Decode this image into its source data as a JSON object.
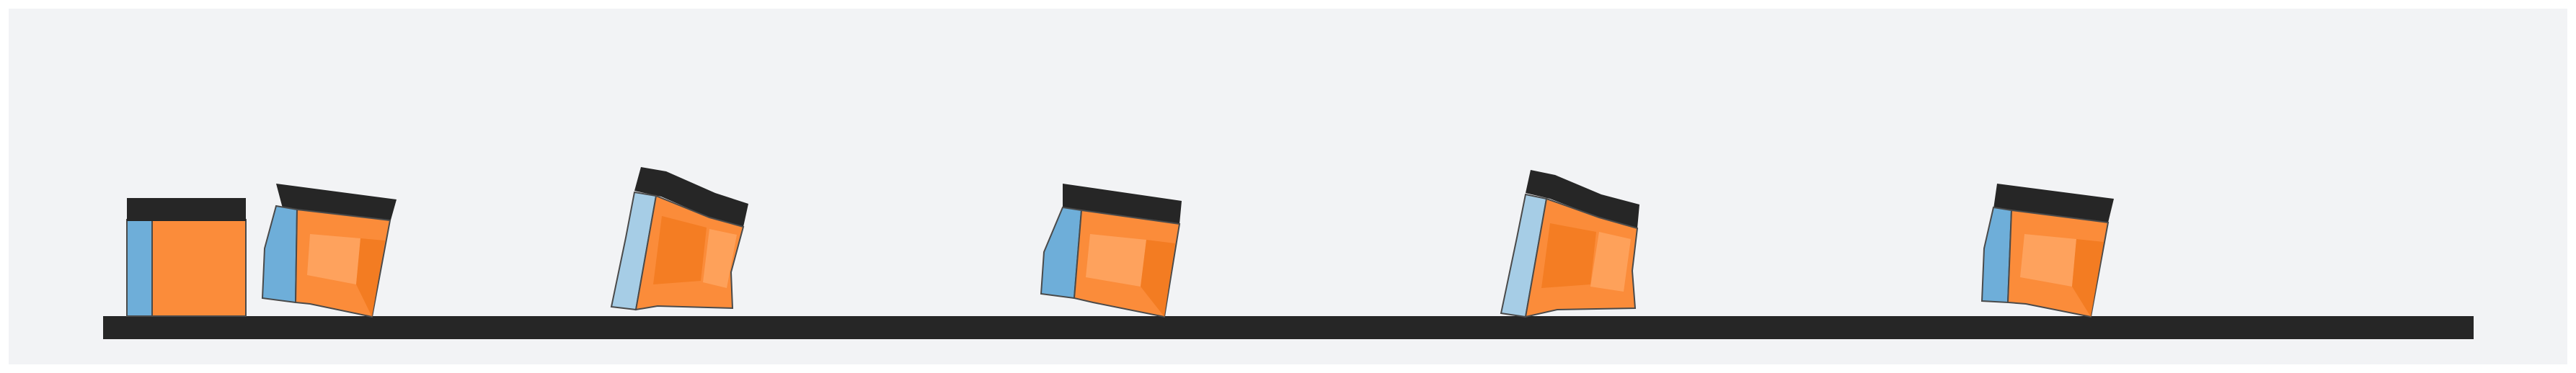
{
  "scene": {
    "description_free": true,
    "colors": {
      "panel_background": "#f2f3f5",
      "ground": "#262626",
      "top_plate": "#262626",
      "soft_body_orange": "#fb8c3a",
      "soft_body_orange_dark": "#f27a20",
      "soft_body_orange_light": "#ffa866",
      "soft_body_side_blue": "#6eaed9",
      "soft_body_side_blue_light": "#a6cde6",
      "outline": "#4a4a4a"
    },
    "frames": [
      {
        "id": "rest",
        "pose": "upright-square"
      },
      {
        "id": "frame-1",
        "pose": "tilt-right"
      },
      {
        "id": "frame-2",
        "pose": "lean-back"
      },
      {
        "id": "frame-3",
        "pose": "tilt-right"
      },
      {
        "id": "frame-4",
        "pose": "lean-back"
      },
      {
        "id": "frame-5",
        "pose": "tilt-right"
      }
    ]
  }
}
